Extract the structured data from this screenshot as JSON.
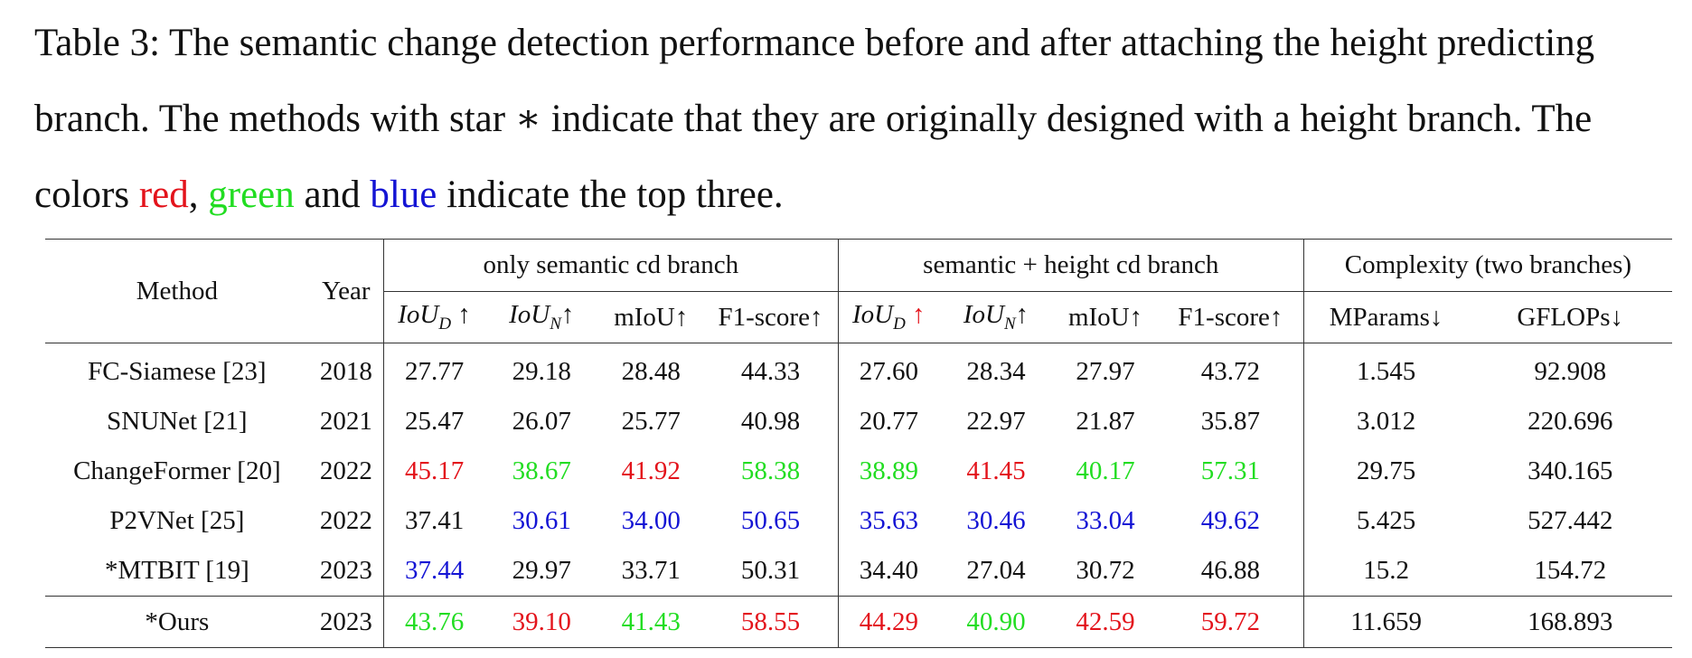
{
  "caption": {
    "prefix": "Table 3: The semantic change detection performance before and after attaching the height predicting branch. The methods with star ∗ indicate that they are originally designed with a height branch. The colors ",
    "red_word": "red",
    "comma": ", ",
    "green_word": "green",
    "and": " and ",
    "blue_word": "blue",
    "suffix": " indicate the top three."
  },
  "colors": {
    "red": "#e3131b",
    "green": "#22dd22",
    "blue": "#1414d4",
    "black": "#111111"
  },
  "table": {
    "headers": {
      "method": "Method",
      "year": "Year",
      "group1": "only semantic cd branch",
      "group2": "semantic + height cd branch",
      "group3": "Complexity (two branches)",
      "iou_d_base": "IoU",
      "iou_d_sub": "D",
      "iou_n_base": "IoU",
      "iou_n_sub": "N",
      "up_arrow": "↑",
      "miou": "mIoU↑",
      "f1": "F1-score↑",
      "mparams": "MParams↓",
      "gflops": "GFLOPs↓"
    },
    "rows": [
      {
        "method": "FC-Siamese [23]",
        "year": "2018",
        "s_iou_d": {
          "v": "27.77",
          "c": "black"
        },
        "s_iou_n": {
          "v": "29.18",
          "c": "black"
        },
        "s_miou": {
          "v": "28.48",
          "c": "black"
        },
        "s_f1": {
          "v": "44.33",
          "c": "black"
        },
        "h_iou_d": {
          "v": "27.60",
          "c": "black"
        },
        "h_iou_n": {
          "v": "28.34",
          "c": "black"
        },
        "h_miou": {
          "v": "27.97",
          "c": "black"
        },
        "h_f1": {
          "v": "43.72",
          "c": "black"
        },
        "mparams": "1.545",
        "gflops": "92.908"
      },
      {
        "method": "SNUNet [21]",
        "year": "2021",
        "s_iou_d": {
          "v": "25.47",
          "c": "black"
        },
        "s_iou_n": {
          "v": "26.07",
          "c": "black"
        },
        "s_miou": {
          "v": "25.77",
          "c": "black"
        },
        "s_f1": {
          "v": "40.98",
          "c": "black"
        },
        "h_iou_d": {
          "v": "20.77",
          "c": "black"
        },
        "h_iou_n": {
          "v": "22.97",
          "c": "black"
        },
        "h_miou": {
          "v": "21.87",
          "c": "black"
        },
        "h_f1": {
          "v": "35.87",
          "c": "black"
        },
        "mparams": "3.012",
        "gflops": "220.696"
      },
      {
        "method": "ChangeFormer [20]",
        "year": "2022",
        "s_iou_d": {
          "v": "45.17",
          "c": "red"
        },
        "s_iou_n": {
          "v": "38.67",
          "c": "green"
        },
        "s_miou": {
          "v": "41.92",
          "c": "red"
        },
        "s_f1": {
          "v": "58.38",
          "c": "green"
        },
        "h_iou_d": {
          "v": "38.89",
          "c": "green"
        },
        "h_iou_n": {
          "v": "41.45",
          "c": "red"
        },
        "h_miou": {
          "v": "40.17",
          "c": "green"
        },
        "h_f1": {
          "v": "57.31",
          "c": "green"
        },
        "mparams": "29.75",
        "gflops": "340.165"
      },
      {
        "method": "P2VNet [25]",
        "year": "2022",
        "s_iou_d": {
          "v": "37.41",
          "c": "black"
        },
        "s_iou_n": {
          "v": "30.61",
          "c": "blue"
        },
        "s_miou": {
          "v": "34.00",
          "c": "blue"
        },
        "s_f1": {
          "v": "50.65",
          "c": "blue"
        },
        "h_iou_d": {
          "v": "35.63",
          "c": "blue"
        },
        "h_iou_n": {
          "v": "30.46",
          "c": "blue"
        },
        "h_miou": {
          "v": "33.04",
          "c": "blue"
        },
        "h_f1": {
          "v": "49.62",
          "c": "blue"
        },
        "mparams": "5.425",
        "gflops": "527.442"
      },
      {
        "method": "*MTBIT [19]",
        "year": "2023",
        "s_iou_d": {
          "v": "37.44",
          "c": "blue"
        },
        "s_iou_n": {
          "v": "29.97",
          "c": "black"
        },
        "s_miou": {
          "v": "33.71",
          "c": "black"
        },
        "s_f1": {
          "v": "50.31",
          "c": "black"
        },
        "h_iou_d": {
          "v": "34.40",
          "c": "black"
        },
        "h_iou_n": {
          "v": "27.04",
          "c": "black"
        },
        "h_miou": {
          "v": "30.72",
          "c": "black"
        },
        "h_f1": {
          "v": "46.88",
          "c": "black"
        },
        "mparams": "15.2",
        "gflops": "154.72"
      },
      {
        "method": "*Ours",
        "year": "2023",
        "s_iou_d": {
          "v": "43.76",
          "c": "green"
        },
        "s_iou_n": {
          "v": "39.10",
          "c": "red"
        },
        "s_miou": {
          "v": "41.43",
          "c": "green"
        },
        "s_f1": {
          "v": "58.55",
          "c": "red"
        },
        "h_iou_d": {
          "v": "44.29",
          "c": "red"
        },
        "h_iou_n": {
          "v": "40.90",
          "c": "green"
        },
        "h_miou": {
          "v": "42.59",
          "c": "red"
        },
        "h_f1": {
          "v": "59.72",
          "c": "red"
        },
        "mparams": "11.659",
        "gflops": "168.893"
      }
    ]
  }
}
